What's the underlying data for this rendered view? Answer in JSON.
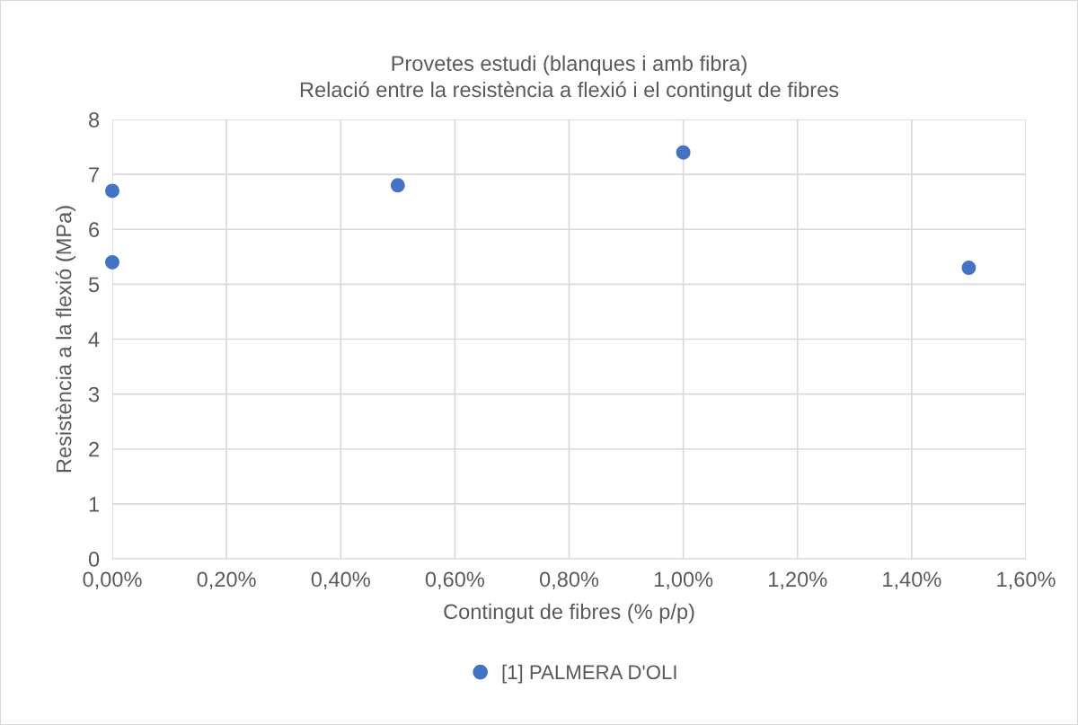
{
  "chart_data": {
    "type": "scatter",
    "title": "Provetes estudi (blanques i amb fibra)\nRelació entre la resistència a flexió i el contingut de fibres",
    "xlabel": "Contingut de fibres (% p/p)",
    "ylabel": "Resistència a la flexió (MPa)",
    "series": [
      {
        "name": "[1] PALMERA D'OLI",
        "color": "#4472c4",
        "x": [
          0.0,
          0.0,
          0.5,
          1.0,
          1.5
        ],
        "values": [
          6.7,
          5.4,
          6.8,
          7.4,
          5.3
        ]
      }
    ],
    "xlim": [
      0,
      1.6
    ],
    "xticks": [
      {
        "value": 0,
        "label": "0,00%"
      },
      {
        "value": 0.2,
        "label": "0,20%"
      },
      {
        "value": 0.4,
        "label": "0,40%"
      },
      {
        "value": 0.6,
        "label": "0,60%"
      },
      {
        "value": 0.8,
        "label": "0,80%"
      },
      {
        "value": 1.0,
        "label": "1,00%"
      },
      {
        "value": 1.2,
        "label": "1,20%"
      },
      {
        "value": 1.4,
        "label": "1,40%"
      },
      {
        "value": 1.6,
        "label": "1,60%"
      }
    ],
    "ylim": [
      0,
      8
    ],
    "yticks": [
      0,
      1,
      2,
      3,
      4,
      5,
      6,
      7,
      8
    ],
    "grid": true,
    "legend": "bottom",
    "marker": "circle"
  }
}
